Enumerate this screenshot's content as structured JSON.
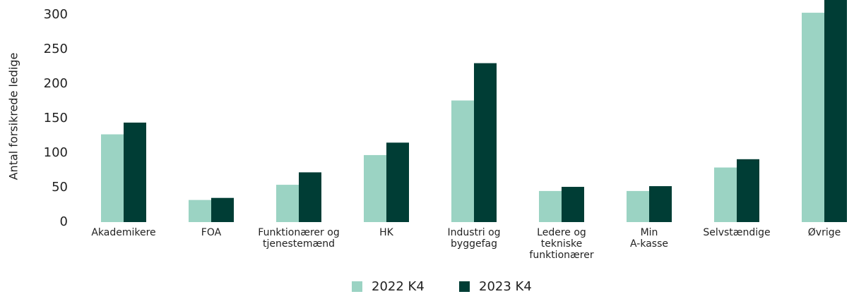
{
  "chart_data": {
    "type": "bar",
    "y_label": "Antal forsikrede ledige",
    "categories": [
      "Akademikere",
      "FOA",
      "Funktionærer og\ntjenestemænd",
      "HK",
      "Industri og\nbyggefag",
      "Ledere og\ntekniske\nfunktionærer",
      "Min\nA-kasse",
      "Selvstændige",
      "Øvrige"
    ],
    "series": [
      {
        "name": "2022 K4",
        "color": "#9bd3c3",
        "values": [
          127,
          32,
          54,
          97,
          176,
          45,
          45,
          79,
          303
        ]
      },
      {
        "name": "2023 K4",
        "color": "#003d35",
        "values": [
          144,
          35,
          72,
          115,
          230,
          51,
          52,
          91,
          330
        ]
      }
    ],
    "ylim": [
      0,
      320
    ],
    "yticks": [
      0,
      50,
      100,
      150,
      200,
      250,
      300
    ],
    "grid": false,
    "legend": "bottom"
  }
}
